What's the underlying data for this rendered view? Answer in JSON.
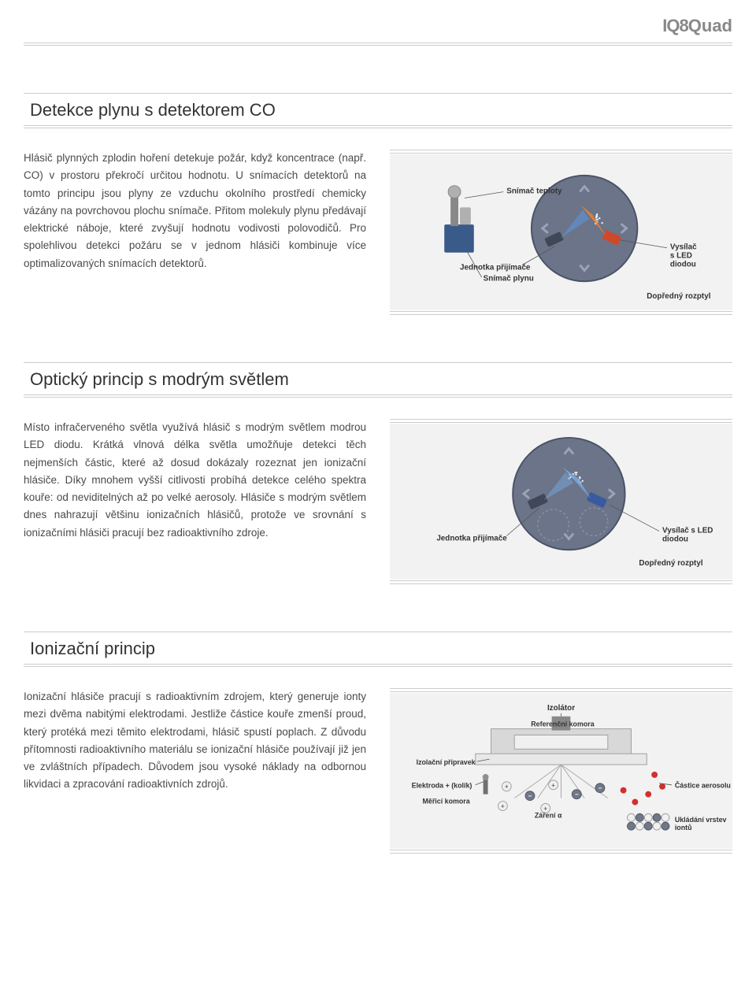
{
  "brand": {
    "prefix": "IQ8",
    "suffix": "Quad"
  },
  "sections": {
    "co": {
      "title": "Detekce plynu s detektorem CO",
      "body": "Hlásič plynných zplodin hoření detekuje požár, když koncentrace (např. CO) v prostoru překročí určitou hodnotu. U snímacích detektorů na tomto principu jsou plyny ze vzduchu okolního prostředí chemicky vázány na povrchovou plochu snímače. Přitom molekuly plynu předávají elektrické náboje, které zvyšují hodnotu vodivosti polovodičů. Pro spolehlivou detekci požáru se v jednom hlásiči kombinuje více optimalizovaných snímacích detektorů.",
      "labels": {
        "snimacTeploty": "Snímač teploty",
        "jednotkaPrijimace": "Jednotka přijímače",
        "snimacPlynu": "Snímač plynu",
        "vysilacLed": "Vysílač s LED diodou",
        "doprednyRozptyl": "Dopředný rozptyl"
      },
      "colors": {
        "chamber": "#6b7488",
        "chamberStroke": "#4a5266",
        "pcb": "#3a5a8a",
        "sensor": "#888888",
        "ledBody": "#d04828",
        "lightOrange": "#f08030",
        "lightBlue": "#6090d0",
        "arrow": "#9aa4b8",
        "background": "#f2f2f2"
      }
    },
    "blue": {
      "title": "Optický princip s modrým světlem",
      "body": "Místo infračerveného světla využívá hlásič s modrým světlem modrou LED diodu. Krátká vlnová délka světla umožňuje detekci těch nejmenších částic, které až dosud dokázaly rozeznat jen ionizační hlásiče. Díky mnohem vyšší citlivosti probíhá detekce celého spektra kouře: od neviditelných až po velké aerosoly. Hlásiče s modrým světlem dnes nahrazují většinu ionizačních hlásičů, protože ve srovnání s ionizačními hlásiči pracují bez radioaktivního zdroje.",
      "labels": {
        "jednotkaPrijimace": "Jednotka přijímače",
        "vysilacLed": "Vysílač s LED diodou",
        "doprednyRozptyl": "Dopředný rozptyl"
      },
      "colors": {
        "chamber": "#6b7488",
        "chamberStroke": "#4a5266",
        "lightBlue": "#78a8e0",
        "arrow": "#9aa4b8",
        "dashed": "#8892a8",
        "background": "#f2f2f2"
      }
    },
    "ion": {
      "title": "Ionizační princip",
      "body": "Ionizační hlásiče pracují s radioaktivním zdrojem, který generuje ionty mezi dvěma nabitými elektrodami. Jestliže částice kouře zmenší proud, který protéká mezi těmito elektrodami, hlásič spustí poplach. Z důvodu přítomnosti radioaktivního materiálu se ionizační hlásiče používají již jen ve zvláštních případech. Důvodem jsou vysoké náklady na odbornou likvidaci a zpracování radioaktivních zdrojů.",
      "labels": {
        "izolator": "Izolátor",
        "referencniKomora": "Referenční komora",
        "izolacniPripravek": "Izolační přípravek",
        "elektrodaKolik": "Elektroda + (kolík)",
        "mericiKomora": "Měřicí komora",
        "zareniAlpha": "Záření α",
        "casticeAerosolu": "Částice aerosolu",
        "ukladaniVrstev": "Ukládání vrstev iontů"
      },
      "colors": {
        "housing": "#d8d8d8",
        "housingStroke": "#a0a0a0",
        "insulator": "#888888",
        "posIon": "#f0f0f0",
        "posIonStroke": "#a0a0a0",
        "negIon": "#707888",
        "aerosol": "#d03030",
        "radiation": "#aaaaaa",
        "background": "#f2f2f2"
      }
    }
  }
}
